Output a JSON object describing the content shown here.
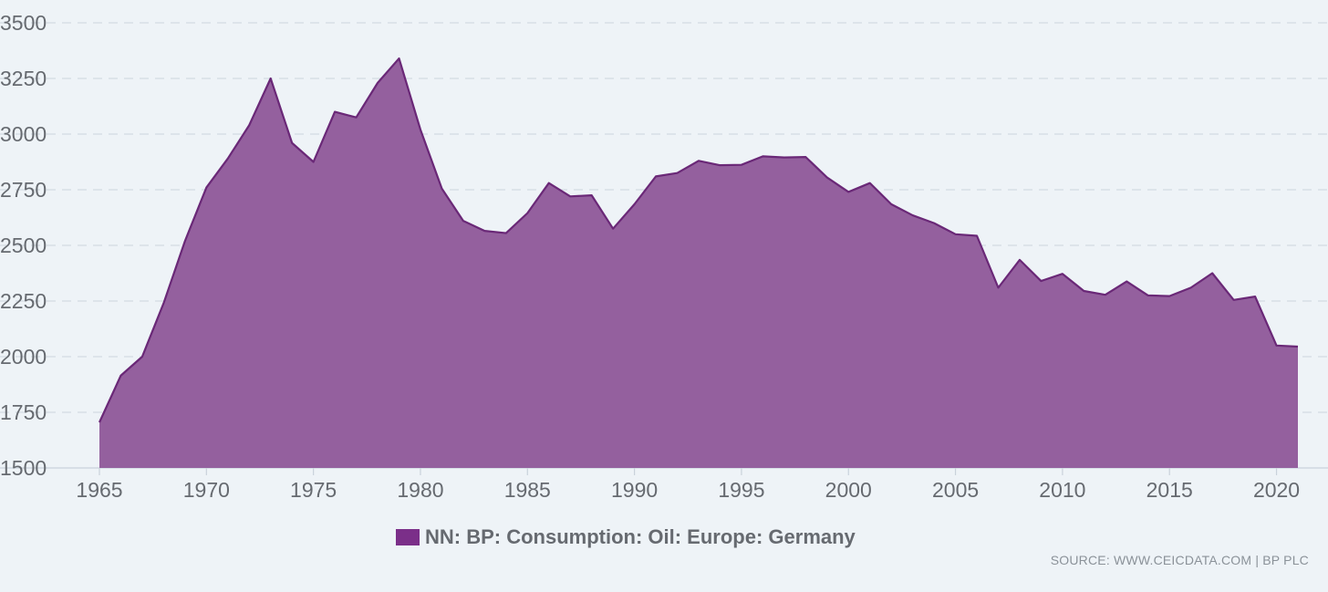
{
  "chart_data": {
    "type": "area",
    "title": "",
    "xlabel": "",
    "ylabel": "",
    "x_ticks": [
      "1965",
      "1970",
      "1975",
      "1980",
      "1985",
      "1990",
      "1995",
      "2000",
      "2005",
      "2010",
      "2015",
      "2020"
    ],
    "y_ticks": [
      "1500",
      "1750",
      "2000",
      "2250",
      "2500",
      "2750",
      "3000",
      "3250",
      "3500"
    ],
    "xlim": [
      1965,
      2021
    ],
    "ylim": [
      1500,
      3500
    ],
    "grid": true,
    "legend_position": "bottom",
    "series": [
      {
        "name": "NN: BP: Consumption: Oil: Europe: Germany",
        "color": "#7b2f89",
        "x": [
          1965,
          1966,
          1967,
          1968,
          1969,
          1970,
          1971,
          1972,
          1973,
          1974,
          1975,
          1976,
          1977,
          1978,
          1979,
          1980,
          1981,
          1982,
          1983,
          1984,
          1985,
          1986,
          1987,
          1988,
          1989,
          1990,
          1991,
          1992,
          1993,
          1994,
          1995,
          1996,
          1997,
          1998,
          1999,
          2000,
          2001,
          2002,
          2003,
          2004,
          2005,
          2006,
          2007,
          2008,
          2009,
          2010,
          2011,
          2012,
          2013,
          2014,
          2015,
          2016,
          2017,
          2018,
          2019,
          2020,
          2021
        ],
        "values": [
          1705,
          1915,
          2000,
          2240,
          2520,
          2760,
          2890,
          3040,
          3250,
          2960,
          2875,
          3100,
          3075,
          3230,
          3340,
          3020,
          2755,
          2610,
          2565,
          2555,
          2645,
          2780,
          2720,
          2725,
          2575,
          2685,
          2810,
          2825,
          2880,
          2860,
          2862,
          2900,
          2895,
          2897,
          2805,
          2740,
          2780,
          2685,
          2635,
          2600,
          2550,
          2543,
          2310,
          2435,
          2340,
          2372,
          2295,
          2278,
          2338,
          2275,
          2272,
          2310,
          2375,
          2255,
          2270,
          2050,
          2045
        ]
      }
    ]
  },
  "legend": {
    "label": "NN: BP: Consumption: Oil: Europe: Germany",
    "color": "#7b2f89"
  },
  "source": "SOURCE: WWW.CEICDATA.COM | BP PLC",
  "colors": {
    "background": "#eef3f7",
    "area_fill": "#94609e",
    "line": "#6a2877",
    "grid": "#d3dbe3",
    "text": "#666a70"
  }
}
